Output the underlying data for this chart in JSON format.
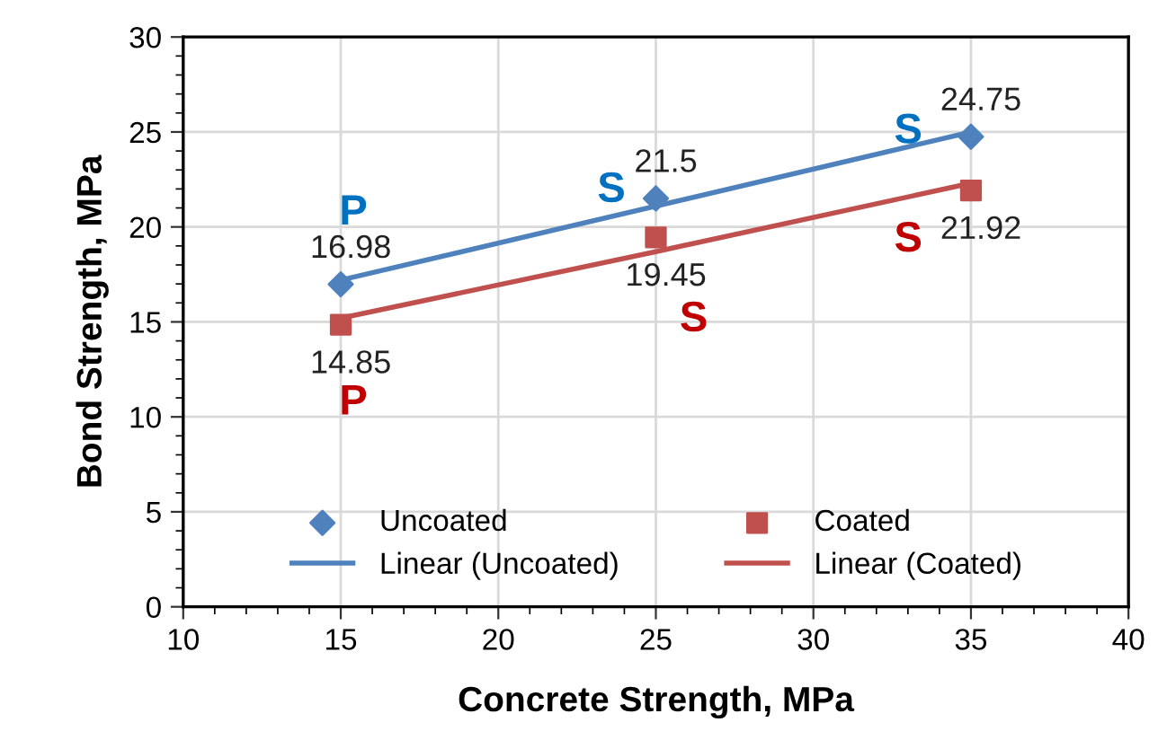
{
  "chart_data": {
    "type": "scatter",
    "xlabel": "Concrete Strength, MPa",
    "ylabel": "Bond Strength, MPa",
    "x": [
      15,
      25,
      35
    ],
    "series": [
      {
        "name": "Uncoated",
        "color": "#4f81bd",
        "marker": "diamond",
        "values": [
          16.98,
          21.5,
          24.75
        ],
        "value_labels": [
          "16.98",
          "21.5",
          "24.75"
        ]
      },
      {
        "name": "Coated",
        "color": "#c0504d",
        "marker": "square",
        "values": [
          14.85,
          19.45,
          21.92
        ],
        "value_labels": [
          "14.85",
          "19.45",
          "21.92"
        ]
      },
      {
        "name": "Linear (Uncoated)",
        "type": "line",
        "color": "#4f81bd",
        "values": [
          17.2,
          21.1,
          25.0
        ]
      },
      {
        "name": "Linear (Coated)",
        "type": "line",
        "color": "#c0504d",
        "values": [
          15.2,
          18.7,
          22.3
        ]
      }
    ],
    "annotations": [
      "P",
      "S",
      "S",
      "P",
      "S",
      "S"
    ],
    "xlim": [
      10,
      40
    ],
    "xticks": [
      10,
      15,
      20,
      25,
      30,
      35,
      40
    ],
    "ylim": [
      0,
      30
    ],
    "yticks": [
      0,
      5,
      10,
      15,
      20,
      25,
      30
    ],
    "grid": true,
    "legend": "bottom"
  }
}
